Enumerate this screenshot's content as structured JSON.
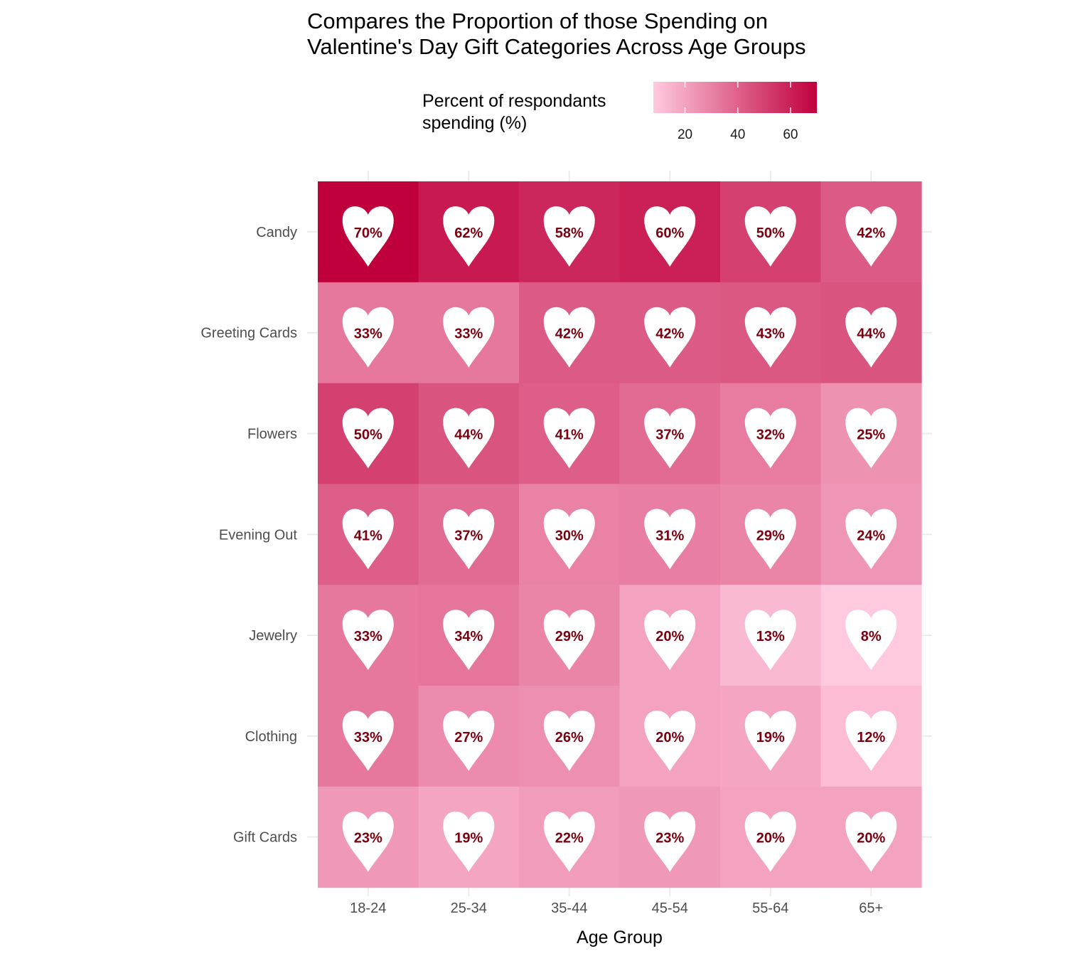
{
  "chart_data": {
    "type": "heatmap",
    "title": "Compares the Proportion of those Spending on\nValentine's Day Gift Categories Across Age Groups",
    "xlabel": "Age Group",
    "ylabel": "",
    "x": [
      "18-24",
      "25-34",
      "35-44",
      "45-54",
      "55-64",
      "65+"
    ],
    "y": [
      "Candy",
      "Greeting Cards",
      "Flowers",
      "Evening Out",
      "Jewelry",
      "Clothing",
      "Gift Cards"
    ],
    "values": [
      [
        70,
        62,
        58,
        60,
        50,
        42
      ],
      [
        33,
        33,
        42,
        42,
        43,
        44
      ],
      [
        50,
        44,
        41,
        37,
        32,
        25
      ],
      [
        41,
        37,
        30,
        31,
        29,
        24
      ],
      [
        33,
        34,
        29,
        20,
        13,
        8
      ],
      [
        33,
        27,
        26,
        20,
        19,
        12
      ],
      [
        23,
        19,
        22,
        23,
        20,
        20
      ]
    ],
    "value_suffix": "%",
    "marker": "heart",
    "legend": {
      "title": "Percent of respondants\nspending (%)",
      "ticks": [
        20,
        40,
        60
      ],
      "range": [
        8,
        70
      ],
      "placement": "top",
      "color_low": "#ffc9df",
      "color_high": "#c0003c"
    },
    "grid": true
  }
}
